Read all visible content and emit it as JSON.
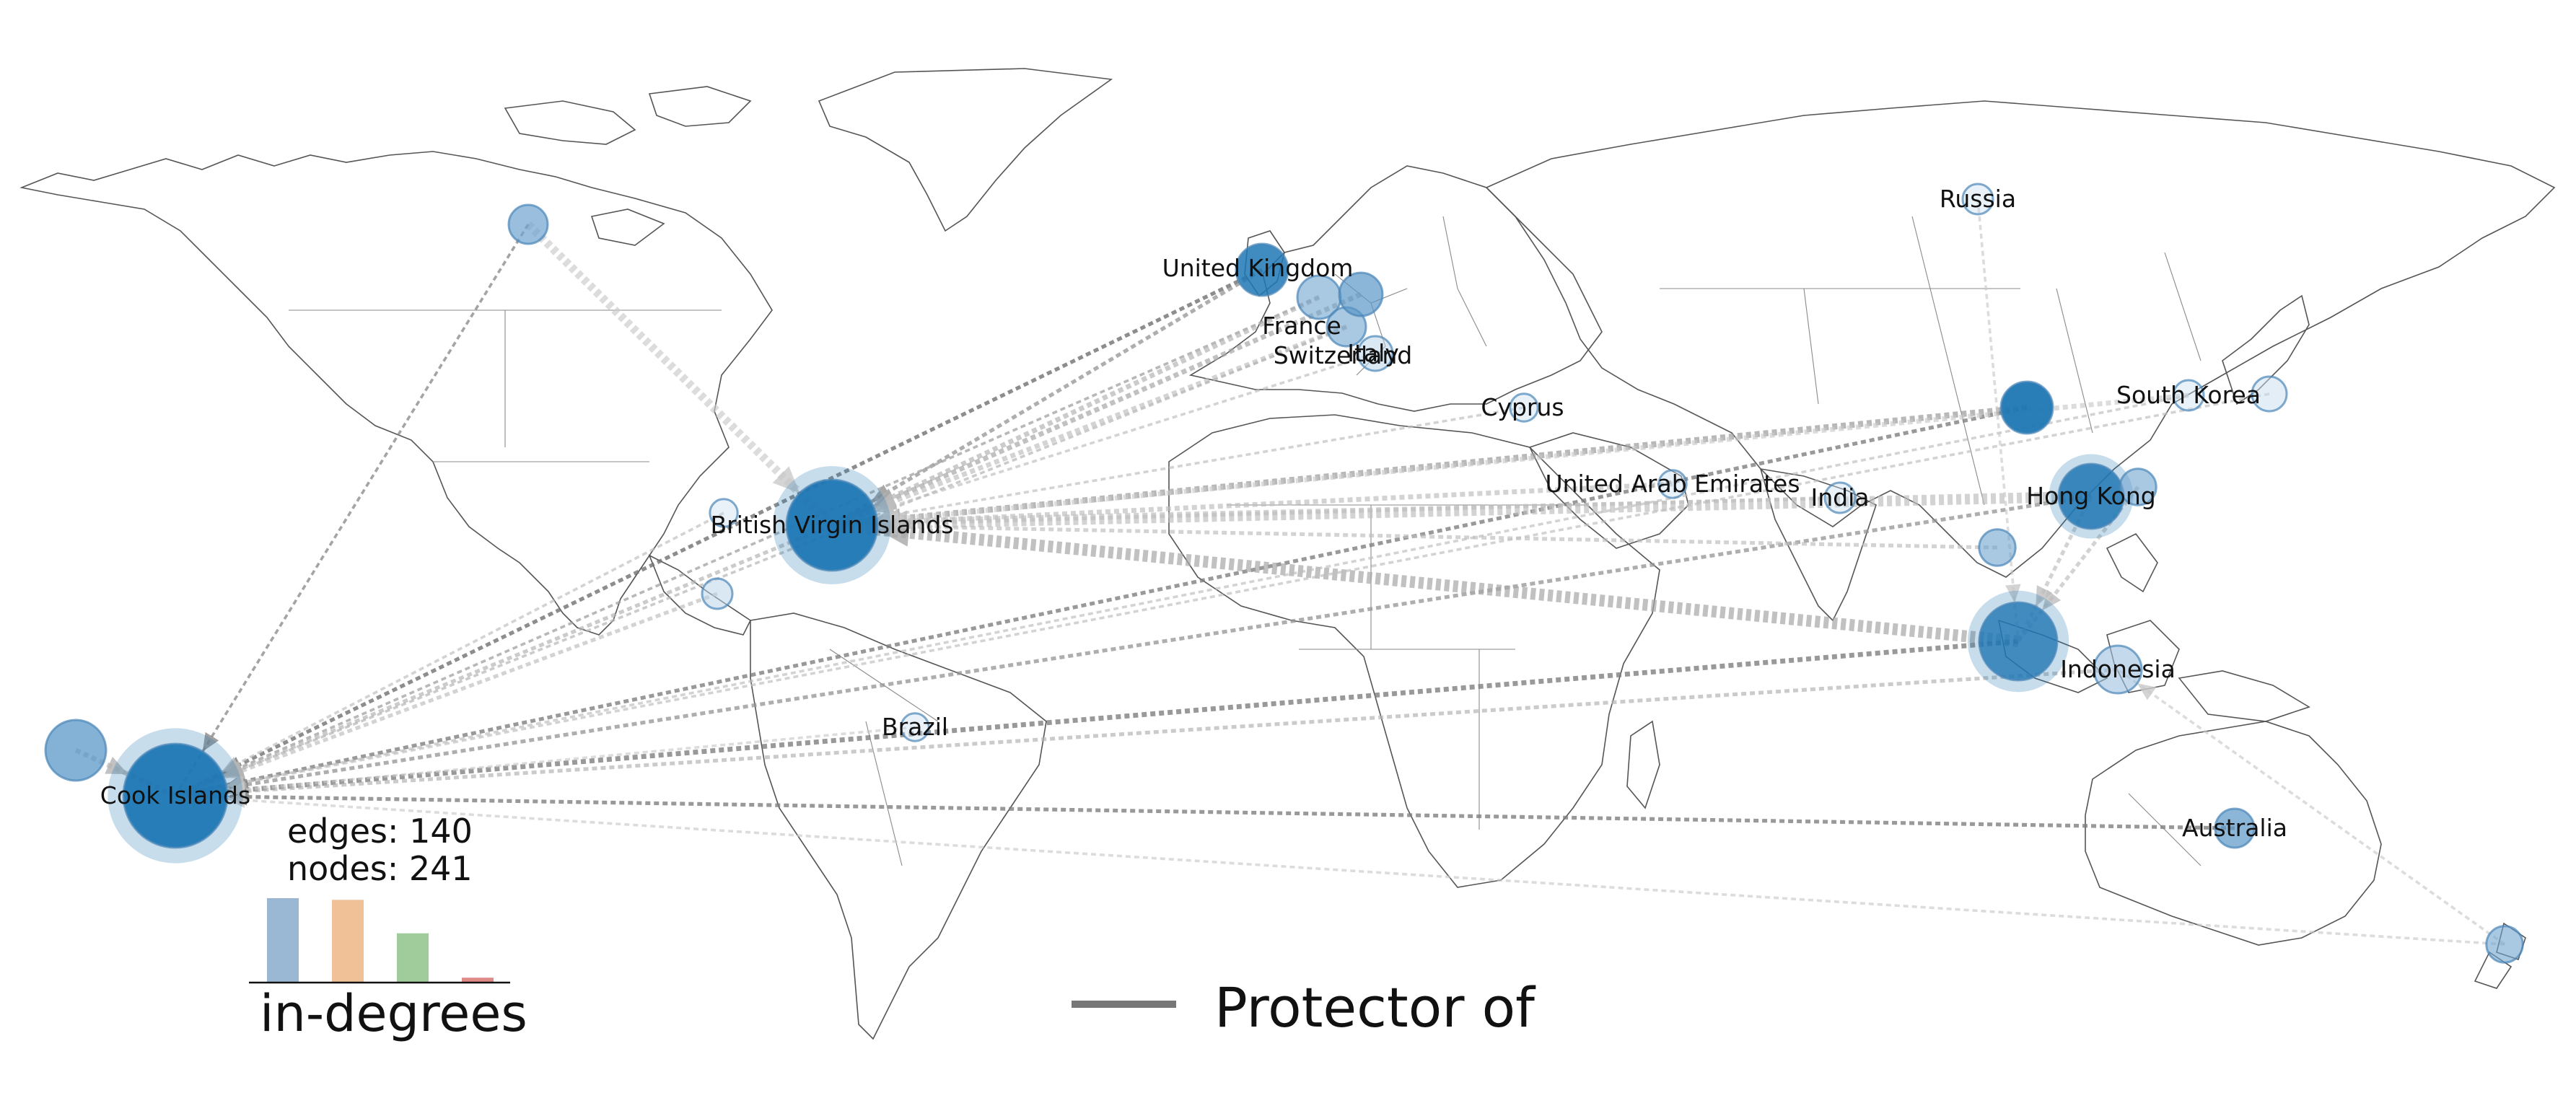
{
  "stats": {
    "edges": "edges: 140",
    "nodes": "nodes: 241"
  },
  "histogram": {
    "title": "in-degrees",
    "bars": [
      {
        "value": 1.0,
        "color": "#9ab8d3"
      },
      {
        "value": 0.98,
        "color": "#f0c096"
      },
      {
        "value": 0.58,
        "color": "#a0cc9b"
      },
      {
        "value": 0.05,
        "color": "#e08a88"
      }
    ]
  },
  "legend": {
    "label": "Protector of",
    "line_color": "#777777"
  },
  "nodes": [
    {
      "id": "cook",
      "label": "Cook Islands",
      "size": 1.0,
      "color": "#1f77b4",
      "alpha": 0.95,
      "halo": true
    },
    {
      "id": "bvi",
      "label": "British Virgin Islands",
      "size": 0.85,
      "color": "#1f77b4",
      "alpha": 0.95,
      "halo": true
    },
    {
      "id": "indo_main",
      "label": "",
      "size": 0.7,
      "color": "#1f77b4",
      "alpha": 0.8,
      "halo": true
    },
    {
      "id": "indonesia",
      "label": "Indonesia",
      "size": 0.35,
      "color": "#9cc0de",
      "alpha": 0.6,
      "halo": false
    },
    {
      "id": "hongkong",
      "label": "Hong Kong",
      "size": 0.55,
      "color": "#1f77b4",
      "alpha": 0.85,
      "halo": true
    },
    {
      "id": "cn_east",
      "label": "",
      "size": 0.4,
      "color": "#1f77b4",
      "alpha": 0.95,
      "halo": false
    },
    {
      "id": "uk",
      "label": "United Kingdom",
      "size": 0.4,
      "color": "#1f77b4",
      "alpha": 0.85,
      "halo": false
    },
    {
      "id": "france",
      "label": "France",
      "size": 0.3,
      "color": "#6fa3cf",
      "alpha": 0.6,
      "halo": false
    },
    {
      "id": "switzerland",
      "label": "Switzerland",
      "size": 0.25,
      "color": "#6fa3cf",
      "alpha": 0.6,
      "halo": false
    },
    {
      "id": "germany",
      "label": "",
      "size": 0.3,
      "color": "#5b97c8",
      "alpha": 0.7,
      "halo": false
    },
    {
      "id": "italy",
      "label": "Italy",
      "size": 0.2,
      "color": "#b5d1ea",
      "alpha": 0.5,
      "halo": false
    },
    {
      "id": "cyprus",
      "label": "Cyprus",
      "size": 0.12,
      "color": "#c8ddef",
      "alpha": 0.4,
      "halo": false
    },
    {
      "id": "uae",
      "label": "United Arab Emirates",
      "size": 0.12,
      "color": "#c8ddef",
      "alpha": 0.4,
      "halo": false
    },
    {
      "id": "india",
      "label": "India",
      "size": 0.15,
      "color": "#c8ddef",
      "alpha": 0.4,
      "halo": false
    },
    {
      "id": "southkorea",
      "label": "South Korea",
      "size": 0.15,
      "color": "#c8ddef",
      "alpha": 0.4,
      "halo": false
    },
    {
      "id": "japan",
      "label": "",
      "size": 0.2,
      "color": "#c8ddef",
      "alpha": 0.5,
      "halo": false
    },
    {
      "id": "russia",
      "label": "Russia",
      "size": 0.15,
      "color": "#c8ddef",
      "alpha": 0.4,
      "halo": false
    },
    {
      "id": "australia",
      "label": "Australia",
      "size": 0.25,
      "color": "#5b97c8",
      "alpha": 0.7,
      "halo": false
    },
    {
      "id": "brazil",
      "label": "Brazil",
      "size": 0.12,
      "color": "#c8ddef",
      "alpha": 0.4,
      "halo": false
    },
    {
      "id": "canada",
      "label": "",
      "size": 0.25,
      "color": "#6fa3cf",
      "alpha": 0.7,
      "halo": false
    },
    {
      "id": "samoa",
      "label": "",
      "size": 0.5,
      "color": "#5b97c8",
      "alpha": 0.75,
      "halo": false
    },
    {
      "id": "nz",
      "label": "",
      "size": 0.22,
      "color": "#6fa3cf",
      "alpha": 0.6,
      "halo": false
    },
    {
      "id": "vietnam",
      "label": "",
      "size": 0.22,
      "color": "#6fa3cf",
      "alpha": 0.6,
      "halo": false
    },
    {
      "id": "panama",
      "label": "",
      "size": 0.15,
      "color": "#b5d1ea",
      "alpha": 0.5,
      "halo": false
    },
    {
      "id": "bahamas",
      "label": "",
      "size": 0.12,
      "color": "#c8ddef",
      "alpha": 0.4,
      "halo": false
    },
    {
      "id": "taiwan",
      "label": "",
      "size": 0.22,
      "color": "#6fa3cf",
      "alpha": 0.6,
      "halo": false
    }
  ],
  "edges": [
    {
      "from": "canada",
      "to": "bvi",
      "weight": 6,
      "shade": 0.25
    },
    {
      "from": "canada",
      "to": "cook",
      "weight": 1,
      "shade": 0.55
    },
    {
      "from": "uk",
      "to": "cook",
      "weight": 2,
      "shade": 0.65
    },
    {
      "from": "uk",
      "to": "bvi",
      "weight": 2,
      "shade": 0.5
    },
    {
      "from": "france",
      "to": "cook",
      "weight": 1,
      "shade": 0.45
    },
    {
      "from": "france",
      "to": "bvi",
      "weight": 3,
      "shade": 0.35
    },
    {
      "from": "germany",
      "to": "bvi",
      "weight": 3,
      "shade": 0.4
    },
    {
      "from": "switzerland",
      "to": "bvi",
      "weight": 3,
      "shade": 0.3
    },
    {
      "from": "switzerland",
      "to": "cook",
      "weight": 1,
      "shade": 0.35
    },
    {
      "from": "italy",
      "to": "bvi",
      "weight": 1,
      "shade": 0.3
    },
    {
      "from": "cn_east",
      "to": "bvi",
      "weight": 4,
      "shade": 0.45
    },
    {
      "from": "cn_east",
      "to": "cook",
      "weight": 2,
      "shade": 0.6
    },
    {
      "from": "hongkong",
      "to": "bvi",
      "weight": 8,
      "shade": 0.3
    },
    {
      "from": "hongkong",
      "to": "cook",
      "weight": 2,
      "shade": 0.5
    },
    {
      "from": "indo_main",
      "to": "bvi",
      "weight": 9,
      "shade": 0.4
    },
    {
      "from": "indo_main",
      "to": "cook",
      "weight": 3,
      "shade": 0.6
    },
    {
      "from": "indonesia",
      "to": "cook",
      "weight": 2,
      "shade": 0.35
    },
    {
      "from": "uae",
      "to": "bvi",
      "weight": 3,
      "shade": 0.3
    },
    {
      "from": "cyprus",
      "to": "bvi",
      "weight": 1,
      "shade": 0.3
    },
    {
      "from": "india",
      "to": "bvi",
      "weight": 2,
      "shade": 0.3
    },
    {
      "from": "southkorea",
      "to": "bvi",
      "weight": 3,
      "shade": 0.25
    },
    {
      "from": "southkorea",
      "to": "cook",
      "weight": 1,
      "shade": 0.3
    },
    {
      "from": "japan",
      "to": "cook",
      "weight": 1,
      "shade": 0.3
    },
    {
      "from": "australia",
      "to": "cook",
      "weight": 2,
      "shade": 0.6
    },
    {
      "from": "nz",
      "to": "cook",
      "weight": 1,
      "shade": 0.25
    },
    {
      "from": "nz",
      "to": "indonesia",
      "weight": 1,
      "shade": 0.25
    },
    {
      "from": "russia",
      "to": "indo_main",
      "weight": 1,
      "shade": 0.25
    },
    {
      "from": "brazil",
      "to": "cook",
      "weight": 1,
      "shade": 0.25
    },
    {
      "from": "panama",
      "to": "cook",
      "weight": 2,
      "shade": 0.3
    },
    {
      "from": "bahamas",
      "to": "cook",
      "weight": 1,
      "shade": 0.3
    },
    {
      "from": "samoa",
      "to": "cook",
      "weight": 3,
      "shade": 0.35
    },
    {
      "from": "vietnam",
      "to": "bvi",
      "weight": 2,
      "shade": 0.3
    },
    {
      "from": "taiwan",
      "to": "indo_main",
      "weight": 2,
      "shade": 0.3
    },
    {
      "from": "bvi",
      "to": "cook",
      "weight": 2,
      "shade": 0.35
    },
    {
      "from": "hongkong",
      "to": "indo_main",
      "weight": 2,
      "shade": 0.3
    }
  ]
}
